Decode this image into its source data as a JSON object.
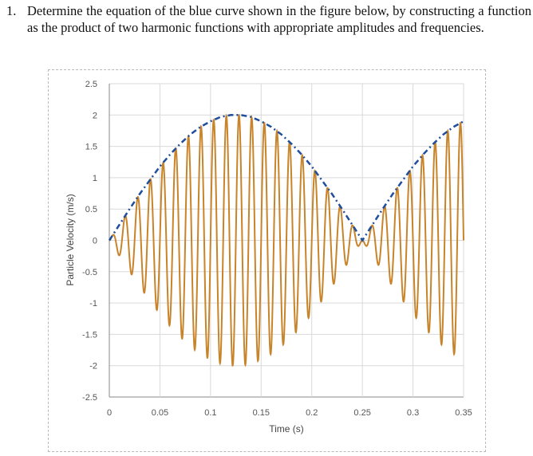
{
  "question": {
    "number": "1.",
    "text": "Determine the equation of the blue curve shown in the figure below, by constructing a function as the product of two harmonic functions with appropriate amplitudes and frequencies."
  },
  "chart_data": {
    "type": "line",
    "title": "",
    "xlabel": "Time (s)",
    "ylabel": "Particle Velocity (m/s)",
    "xlim": [
      0,
      0.35
    ],
    "ylim": [
      -2.5,
      2.5
    ],
    "x_ticks": [
      "0",
      "0.05",
      "0.1",
      "0.15",
      "0.2",
      "0.25",
      "0.3",
      "0.35"
    ],
    "y_ticks": [
      "2.5",
      "2",
      "1.5",
      "1",
      "0.5",
      "0",
      "-0.5",
      "-1",
      "-1.5",
      "-2",
      "-2.5"
    ],
    "grid": true,
    "legend": "none",
    "series": [
      {
        "style": "dash-dot",
        "color": "#1f4e9c",
        "x": [
          0,
          0.01,
          0.02,
          0.03,
          0.04,
          0.05,
          0.06,
          0.07,
          0.08,
          0.09,
          0.1,
          0.11,
          0.12,
          0.13,
          0.14,
          0.15,
          0.16,
          0.17,
          0.18,
          0.19,
          0.2,
          0.21,
          0.22,
          0.23,
          0.24,
          0.25,
          0.26,
          0.27,
          0.28,
          0.29,
          0.3,
          0.31,
          0.32,
          0.33,
          0.34,
          0.35
        ],
        "y": [
          0,
          0.25,
          0.5,
          0.74,
          0.96,
          1.18,
          1.37,
          1.54,
          1.69,
          1.81,
          1.9,
          1.97,
          2.0,
          2.0,
          1.97,
          1.9,
          1.81,
          1.69,
          1.54,
          1.37,
          1.18,
          0.96,
          0.74,
          0.5,
          0.25,
          0,
          0.25,
          0.5,
          0.74,
          0.96,
          1.18,
          1.37,
          1.54,
          1.69,
          1.81,
          1.9
        ]
      },
      {
        "style": "solid",
        "color": "#c8842a",
        "description_model": {
          "amplitude": 2,
          "envelope_frequency_hz": 2,
          "carrier_frequency_hz": 80
        }
      }
    ]
  }
}
